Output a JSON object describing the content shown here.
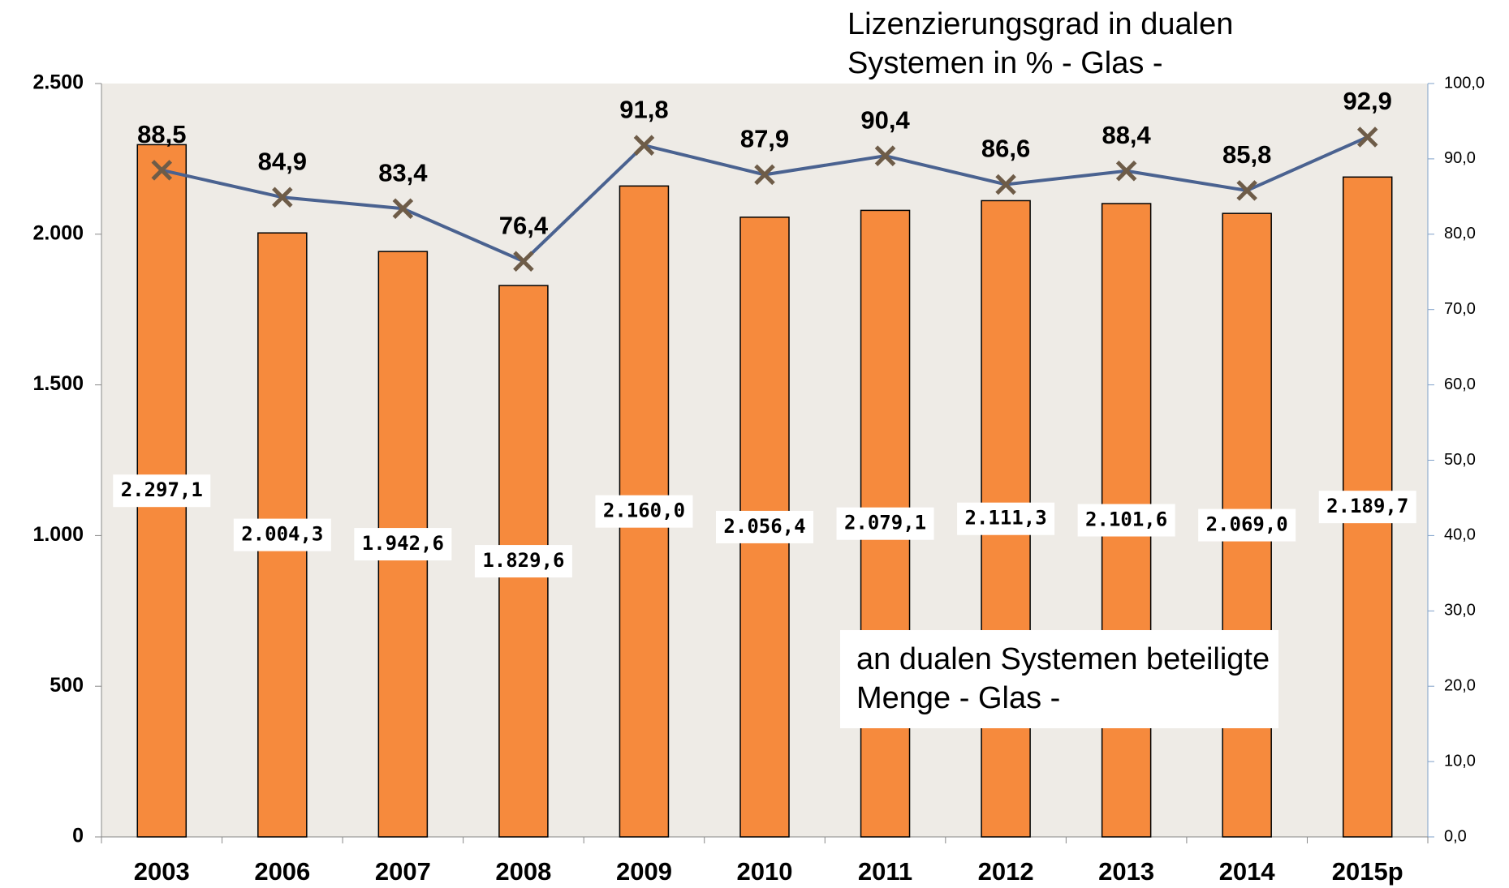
{
  "chart_data": {
    "type": "bar_line",
    "categories": [
      "2003",
      "2006",
      "2007",
      "2008",
      "2009",
      "2010",
      "2011",
      "2012",
      "2013",
      "2014",
      "2015p"
    ],
    "series": [
      {
        "name": "an dualen Systemen beteiligte Menge - Glas -",
        "type": "bar",
        "color": "#f68a3d",
        "values": [
          2297.1,
          2004.3,
          1942.6,
          1829.6,
          2160.0,
          2056.4,
          2079.1,
          2111.3,
          2101.6,
          2069.0,
          2189.7
        ],
        "value_labels": [
          "2.297,1",
          "2.004,3",
          "1.942,6",
          "1.829,6",
          "2.160,0",
          "2.056,4",
          "2.079,1",
          "2.111,3",
          "2.101,6",
          "2.069,0",
          "2.189,7"
        ]
      },
      {
        "name": "Lizenzierungsgrad in dualen Systemen in % - Glas -",
        "type": "line",
        "axis": "y2",
        "color": "#4a6290",
        "marker_color": "#6e5c48",
        "values": [
          88.5,
          84.9,
          83.4,
          76.4,
          91.8,
          87.9,
          90.4,
          86.6,
          88.4,
          85.8,
          92.9
        ],
        "value_labels": [
          "88,5",
          "84,9",
          "83,4",
          "76,4",
          "91,8",
          "87,9",
          "90,4",
          "86,6",
          "88,4",
          "85,8",
          "92,9"
        ]
      }
    ],
    "ylim": [
      0,
      2500
    ],
    "yticks": [
      0,
      500,
      {
        "value": 1000,
        "label": "1.000"
      },
      {
        "value": 1500,
        "label": "1.500"
      },
      {
        "value": 2000,
        "label": "2.000"
      },
      {
        "value": 2500,
        "label": "2.500"
      }
    ],
    "y2lim": [
      0,
      100
    ],
    "y2ticks": [
      {
        "value": 0,
        "label": "0,0"
      },
      {
        "value": 10,
        "label": "10,0"
      },
      {
        "value": 20,
        "label": "20,0"
      },
      {
        "value": 30,
        "label": "30,0"
      },
      {
        "value": 40,
        "label": "40,0"
      },
      {
        "value": 50,
        "label": "50,0"
      },
      {
        "value": 60,
        "label": "60,0"
      },
      {
        "value": 70,
        "label": "70,0"
      },
      {
        "value": 80,
        "label": "80,0"
      },
      {
        "value": 90,
        "label": "90,0"
      },
      {
        "value": 100,
        "label": "100,0"
      }
    ]
  }
}
